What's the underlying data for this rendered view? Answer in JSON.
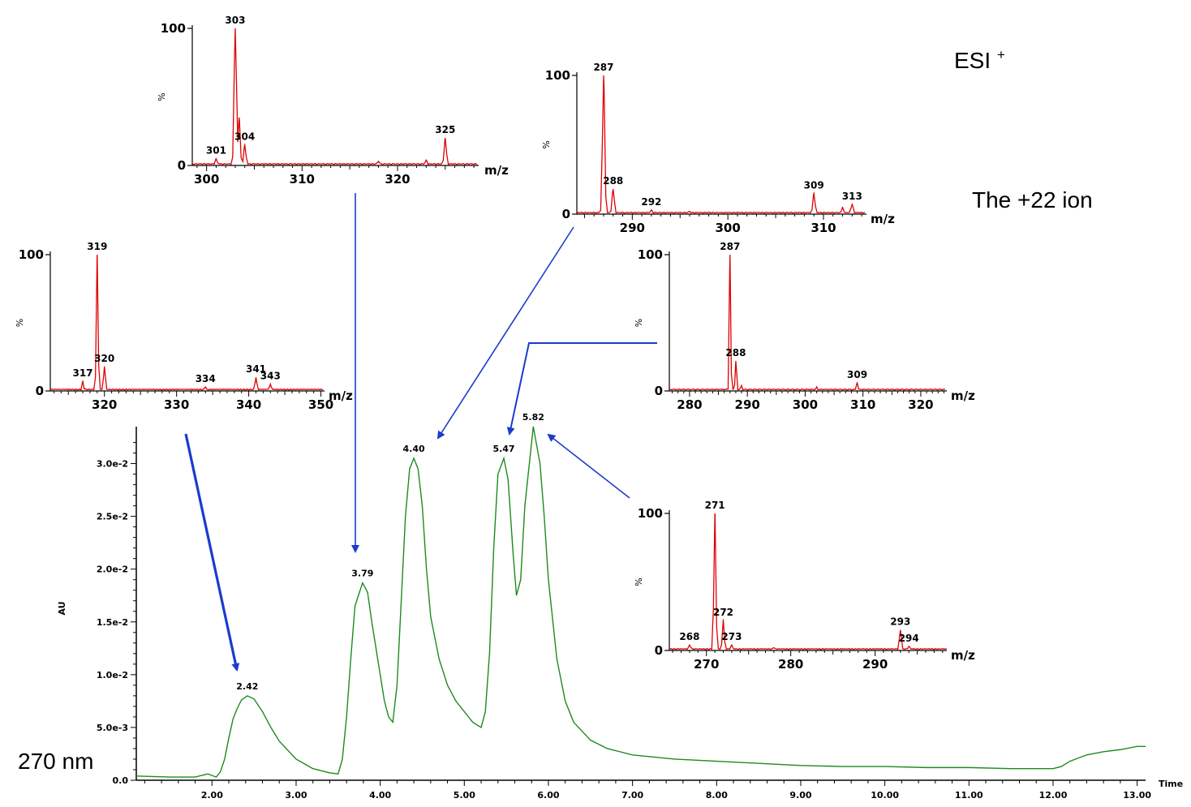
{
  "annotations": {
    "esi": "ESI",
    "esi_sup": "+",
    "ion": "The +22 ion",
    "wavelength": "270 nm"
  },
  "colors": {
    "chromatogram": "#1e8a1e",
    "spectrum": "#e00000",
    "arrow": "#1a3ccc"
  },
  "chart_data": [
    {
      "type": "line",
      "ylabel": "AU",
      "xlabel": "Time",
      "xlim": [
        1.1,
        13.1
      ],
      "ylim": [
        0,
        0.0335
      ],
      "xticks": [
        "2.00",
        "3.00",
        "4.00",
        "5.00",
        "6.00",
        "7.00",
        "8.00",
        "9.00",
        "10.00",
        "11.00",
        "12.00",
        "13.00"
      ],
      "yticks": [
        "0.0",
        "5.0e-3",
        "1.0e-2",
        "1.5e-2",
        "2.0e-2",
        "2.5e-2",
        "3.0e-2"
      ],
      "x": [
        1.1,
        1.5,
        1.8,
        1.95,
        2.05,
        2.1,
        2.15,
        2.2,
        2.25,
        2.3,
        2.35,
        2.42,
        2.5,
        2.6,
        2.7,
        2.8,
        3.0,
        3.2,
        3.4,
        3.5,
        3.55,
        3.6,
        3.65,
        3.7,
        3.79,
        3.85,
        3.9,
        4.0,
        4.05,
        4.1,
        4.15,
        4.2,
        4.25,
        4.3,
        4.35,
        4.4,
        4.45,
        4.5,
        4.55,
        4.6,
        4.7,
        4.8,
        4.9,
        5.0,
        5.1,
        5.2,
        5.25,
        5.3,
        5.35,
        5.4,
        5.47,
        5.52,
        5.58,
        5.62,
        5.67,
        5.72,
        5.82,
        5.9,
        5.95,
        6.0,
        6.1,
        6.2,
        6.3,
        6.5,
        6.7,
        7.0,
        7.5,
        8.0,
        8.5,
        9.0,
        9.5,
        10.0,
        10.5,
        11.0,
        11.5,
        12.0,
        12.1,
        12.2,
        12.4,
        12.6,
        12.8,
        13.0,
        13.1
      ],
      "y": [
        0.0004,
        0.0003,
        0.0003,
        0.0006,
        0.0003,
        0.0008,
        0.002,
        0.004,
        0.0058,
        0.0068,
        0.0076,
        0.008,
        0.0077,
        0.0065,
        0.005,
        0.0037,
        0.002,
        0.0011,
        0.0007,
        0.0006,
        0.002,
        0.006,
        0.0115,
        0.0165,
        0.0187,
        0.0178,
        0.015,
        0.01,
        0.0075,
        0.006,
        0.0055,
        0.009,
        0.017,
        0.025,
        0.0295,
        0.0305,
        0.0295,
        0.026,
        0.02,
        0.0155,
        0.0115,
        0.009,
        0.0075,
        0.0065,
        0.0055,
        0.005,
        0.0065,
        0.012,
        0.022,
        0.029,
        0.0305,
        0.0285,
        0.0215,
        0.0175,
        0.019,
        0.026,
        0.0335,
        0.03,
        0.025,
        0.019,
        0.0115,
        0.0075,
        0.0055,
        0.0038,
        0.003,
        0.0024,
        0.002,
        0.0018,
        0.0016,
        0.0014,
        0.0013,
        0.0013,
        0.0012,
        0.0012,
        0.0011,
        0.0011,
        0.0013,
        0.0018,
        0.0024,
        0.0027,
        0.0029,
        0.0032,
        0.0032
      ],
      "peak_labels": [
        {
          "x": 2.42,
          "label": "2.42",
          "y": 0.008
        },
        {
          "x": 3.79,
          "label": "3.79",
          "y": 0.0187
        },
        {
          "x": 4.4,
          "label": "4.40",
          "y": 0.0305
        },
        {
          "x": 5.47,
          "label": "5.47",
          "y": 0.0305
        },
        {
          "x": 5.82,
          "label": "5.82",
          "y": 0.0335
        }
      ]
    },
    {
      "type": "line",
      "xlabel": "m/z",
      "ylabel": "%",
      "xlim": [
        298.5,
        328.5
      ],
      "ylim": [
        0,
        100
      ],
      "yticks": [
        "0",
        "100"
      ],
      "xticks": [
        "300",
        "310",
        "320"
      ],
      "peaks": [
        [
          301,
          5
        ],
        [
          303,
          100
        ],
        [
          303.4,
          35
        ],
        [
          304,
          15
        ],
        [
          318,
          3
        ],
        [
          323,
          4
        ],
        [
          325,
          20
        ]
      ],
      "peak_labels": [
        {
          "x": 301,
          "label": "301"
        },
        {
          "x": 303,
          "label": "303"
        },
        {
          "x": 304,
          "label": "304"
        },
        {
          "x": 325,
          "label": "325"
        }
      ]
    },
    {
      "type": "line",
      "xlabel": "m/z",
      "ylabel": "%",
      "xlim": [
        284.2,
        314.5
      ],
      "ylim": [
        0,
        100
      ],
      "yticks": [
        "0",
        "100"
      ],
      "xticks": [
        "290",
        "300",
        "310"
      ],
      "peaks": [
        [
          287,
          100
        ],
        [
          288,
          18
        ],
        [
          292,
          3
        ],
        [
          296,
          2
        ],
        [
          309,
          15
        ],
        [
          312,
          5
        ],
        [
          313,
          7
        ]
      ],
      "peak_labels": [
        {
          "x": 287,
          "label": "287"
        },
        {
          "x": 288,
          "label": "288"
        },
        {
          "x": 292,
          "label": "292"
        },
        {
          "x": 309,
          "label": "309"
        },
        {
          "x": 313,
          "label": "313"
        }
      ]
    },
    {
      "type": "line",
      "xlabel": "m/z",
      "ylabel": "%",
      "xlim": [
        312.5,
        350.5
      ],
      "ylim": [
        0,
        100
      ],
      "yticks": [
        "0",
        "100"
      ],
      "xticks": [
        "320",
        "330",
        "340",
        "350"
      ],
      "peaks": [
        [
          317,
          7
        ],
        [
          319,
          100
        ],
        [
          320,
          18
        ],
        [
          334,
          3
        ],
        [
          341,
          10
        ],
        [
          343,
          5
        ]
      ],
      "peak_labels": [
        {
          "x": 317,
          "label": "317"
        },
        {
          "x": 319,
          "label": "319"
        },
        {
          "x": 320,
          "label": "320"
        },
        {
          "x": 334,
          "label": "334"
        },
        {
          "x": 341,
          "label": "341"
        },
        {
          "x": 343,
          "label": "343"
        }
      ]
    },
    {
      "type": "line",
      "xlabel": "m/z",
      "ylabel": "%",
      "xlim": [
        276.5,
        324.5
      ],
      "ylim": [
        0,
        100
      ],
      "yticks": [
        "0",
        "100"
      ],
      "xticks": [
        "280",
        "290",
        "300",
        "310",
        "320"
      ],
      "peaks": [
        [
          287,
          100
        ],
        [
          288,
          22
        ],
        [
          289,
          4
        ],
        [
          302,
          3
        ],
        [
          309,
          6
        ]
      ],
      "peak_labels": [
        {
          "x": 287,
          "label": "287"
        },
        {
          "x": 288,
          "label": "288"
        },
        {
          "x": 309,
          "label": "309"
        }
      ]
    },
    {
      "type": "line",
      "xlabel": "m/z",
      "ylabel": "%",
      "xlim": [
        265.6,
        298.5
      ],
      "ylim": [
        0,
        100
      ],
      "yticks": [
        "0",
        "100"
      ],
      "xticks": [
        "270",
        "280",
        "290"
      ],
      "peaks": [
        [
          268,
          4
        ],
        [
          271,
          100
        ],
        [
          272,
          22
        ],
        [
          273,
          4
        ],
        [
          278,
          2
        ],
        [
          293,
          15
        ],
        [
          294,
          3
        ]
      ],
      "peak_labels": [
        {
          "x": 268,
          "label": "268"
        },
        {
          "x": 271,
          "label": "271"
        },
        {
          "x": 272,
          "label": "272"
        },
        {
          "x": 273,
          "label": "273"
        },
        {
          "x": 293,
          "label": "293"
        },
        {
          "x": 294,
          "label": "294"
        }
      ]
    }
  ]
}
